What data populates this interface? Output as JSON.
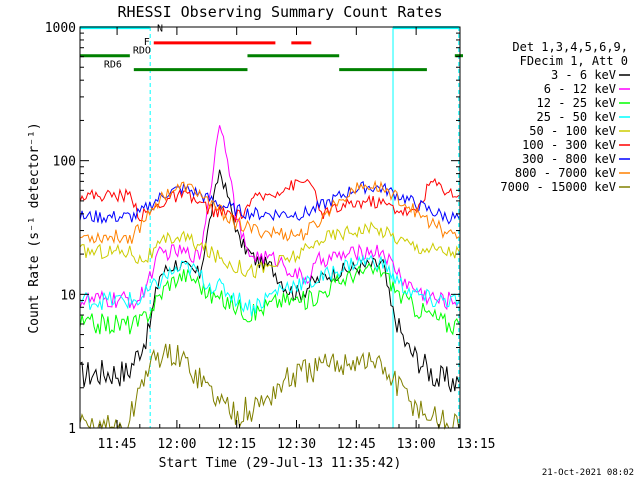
{
  "chart_data": {
    "type": "line",
    "title": "RHESSI Observing Summary Count Rates",
    "xlabel": "Start Time (29-Jul-13 11:35:42)",
    "ylabel": "Count Rate (s⁻¹ detector⁻¹)",
    "yscale": "log",
    "ylim": [
      1,
      1000
    ],
    "xlim_min": [
      0,
      95
    ],
    "x_ticks": [
      {
        "min": 9.3,
        "label": "11:45"
      },
      {
        "min": 24.3,
        "label": "12:00"
      },
      {
        "min": 39.3,
        "label": "12:15"
      },
      {
        "min": 54.3,
        "label": "12:30"
      },
      {
        "min": 69.3,
        "label": "12:45"
      },
      {
        "min": 84.3,
        "label": "13:00"
      },
      {
        "min": 99.3,
        "label": "13:15"
      }
    ],
    "y_ticks": [
      {
        "v": 1,
        "label": "1"
      },
      {
        "v": 10,
        "label": "10"
      },
      {
        "v": 100,
        "label": "100"
      },
      {
        "v": 1000,
        "label": "1000"
      }
    ],
    "legend_header": [
      "Det 1,3,4,5,6,9,",
      "FDecim 1, Att 0"
    ],
    "legend_position": "right",
    "series": [
      {
        "name": "3 - 6 keV",
        "color": "#000000",
        "values": [
          [
            0,
            2.5
          ],
          [
            6,
            2.6
          ],
          [
            12,
            2.6
          ],
          [
            17,
            5
          ],
          [
            20,
            14
          ],
          [
            24,
            17
          ],
          [
            28,
            15
          ],
          [
            30,
            14
          ],
          [
            34,
            60
          ],
          [
            35,
            85
          ],
          [
            37,
            55
          ],
          [
            40,
            25
          ],
          [
            44,
            18
          ],
          [
            48,
            16
          ],
          [
            52,
            11
          ],
          [
            55,
            10
          ],
          [
            58,
            12
          ],
          [
            62,
            14
          ],
          [
            66,
            15
          ],
          [
            70,
            16
          ],
          [
            76,
            17
          ],
          [
            78,
            8
          ],
          [
            82,
            4
          ],
          [
            86,
            3
          ],
          [
            90,
            2.3
          ],
          [
            95,
            2.2
          ]
        ]
      },
      {
        "name": "6 - 12 keV",
        "color": "#ff00ff",
        "values": [
          [
            0,
            9
          ],
          [
            15,
            9
          ],
          [
            18,
            15
          ],
          [
            20,
            20
          ],
          [
            24,
            21
          ],
          [
            28,
            20
          ],
          [
            30,
            19
          ],
          [
            33,
            70
          ],
          [
            35,
            200
          ],
          [
            37,
            110
          ],
          [
            39,
            40
          ],
          [
            42,
            20
          ],
          [
            46,
            19
          ],
          [
            50,
            18
          ],
          [
            54,
            14
          ],
          [
            57,
            13
          ],
          [
            60,
            18
          ],
          [
            64,
            19
          ],
          [
            68,
            20
          ],
          [
            72,
            21
          ],
          [
            76,
            21
          ],
          [
            78,
            17
          ],
          [
            82,
            12
          ],
          [
            86,
            10
          ],
          [
            90,
            9
          ],
          [
            95,
            9
          ]
        ]
      },
      {
        "name": "12 - 25 keV",
        "color": "#00ff00",
        "values": [
          [
            0,
            6
          ],
          [
            15,
            6
          ],
          [
            18,
            8
          ],
          [
            22,
            12
          ],
          [
            26,
            14
          ],
          [
            29,
            13
          ],
          [
            32,
            10
          ],
          [
            36,
            9
          ],
          [
            40,
            8
          ],
          [
            43,
            7
          ],
          [
            46,
            8
          ],
          [
            50,
            9
          ],
          [
            54,
            9
          ],
          [
            57,
            9
          ],
          [
            60,
            10
          ],
          [
            64,
            12
          ],
          [
            68,
            14
          ],
          [
            72,
            15
          ],
          [
            76,
            15
          ],
          [
            80,
            10
          ],
          [
            84,
            8
          ],
          [
            88,
            7
          ],
          [
            92,
            6
          ],
          [
            95,
            6
          ]
        ]
      },
      {
        "name": "25 - 50 keV",
        "color": "#00ffff",
        "values": [
          [
            0,
            9
          ],
          [
            15,
            9
          ],
          [
            18,
            11
          ],
          [
            22,
            14
          ],
          [
            26,
            16
          ],
          [
            29,
            15
          ],
          [
            32,
            12
          ],
          [
            36,
            11
          ],
          [
            40,
            9
          ],
          [
            43,
            8
          ],
          [
            46,
            9
          ],
          [
            50,
            11
          ],
          [
            54,
            12
          ],
          [
            57,
            12
          ],
          [
            60,
            13
          ],
          [
            64,
            15
          ],
          [
            68,
            17
          ],
          [
            72,
            18
          ],
          [
            76,
            17
          ],
          [
            80,
            12
          ],
          [
            84,
            10
          ],
          [
            88,
            9
          ],
          [
            92,
            9
          ],
          [
            95,
            9
          ]
        ]
      },
      {
        "name": "50 - 100 keV",
        "color": "#cccc00",
        "values": [
          [
            0,
            21
          ],
          [
            13,
            21
          ],
          [
            15,
            18
          ],
          [
            18,
            20
          ],
          [
            22,
            26
          ],
          [
            26,
            27
          ],
          [
            29,
            24
          ],
          [
            32,
            21
          ],
          [
            36,
            18
          ],
          [
            40,
            16
          ],
          [
            43,
            15
          ],
          [
            47,
            16
          ],
          [
            51,
            18
          ],
          [
            55,
            20
          ],
          [
            58,
            22
          ],
          [
            60,
            26
          ],
          [
            64,
            28
          ],
          [
            68,
            30
          ],
          [
            72,
            31
          ],
          [
            76,
            30
          ],
          [
            80,
            26
          ],
          [
            84,
            23
          ],
          [
            88,
            22
          ],
          [
            92,
            21
          ],
          [
            95,
            21
          ]
        ]
      },
      {
        "name": "100 - 300 keV",
        "color": "#ff0000",
        "values": [
          [
            0,
            55
          ],
          [
            13,
            55
          ],
          [
            15,
            38
          ],
          [
            18,
            42
          ],
          [
            22,
            52
          ],
          [
            26,
            55
          ],
          [
            29,
            50
          ],
          [
            32,
            44
          ],
          [
            36,
            40
          ],
          [
            40,
            38
          ],
          [
            43,
            50
          ],
          [
            47,
            55
          ],
          [
            51,
            62
          ],
          [
            55,
            68
          ],
          [
            58,
            72
          ],
          [
            60,
            40
          ],
          [
            64,
            43
          ],
          [
            68,
            47
          ],
          [
            72,
            50
          ],
          [
            76,
            48
          ],
          [
            80,
            43
          ],
          [
            84,
            40
          ],
          [
            88,
            70
          ],
          [
            92,
            60
          ],
          [
            95,
            55
          ]
        ]
      },
      {
        "name": "300 - 800 keV",
        "color": "#0000ff",
        "values": [
          [
            0,
            38
          ],
          [
            13,
            38
          ],
          [
            15,
            40
          ],
          [
            18,
            48
          ],
          [
            22,
            58
          ],
          [
            26,
            62
          ],
          [
            29,
            58
          ],
          [
            32,
            52
          ],
          [
            36,
            46
          ],
          [
            40,
            42
          ],
          [
            44,
            40
          ],
          [
            48,
            40
          ],
          [
            52,
            40
          ],
          [
            56,
            40
          ],
          [
            60,
            45
          ],
          [
            64,
            52
          ],
          [
            68,
            60
          ],
          [
            72,
            64
          ],
          [
            76,
            62
          ],
          [
            80,
            55
          ],
          [
            84,
            48
          ],
          [
            88,
            42
          ],
          [
            92,
            38
          ],
          [
            95,
            37
          ]
        ]
      },
      {
        "name": "800 - 7000 keV",
        "color": "#ff8000",
        "values": [
          [
            0,
            27
          ],
          [
            13,
            27
          ],
          [
            15,
            32
          ],
          [
            18,
            45
          ],
          [
            22,
            58
          ],
          [
            26,
            64
          ],
          [
            29,
            60
          ],
          [
            32,
            50
          ],
          [
            36,
            40
          ],
          [
            40,
            33
          ],
          [
            44,
            30
          ],
          [
            48,
            29
          ],
          [
            52,
            28
          ],
          [
            56,
            28
          ],
          [
            60,
            35
          ],
          [
            64,
            48
          ],
          [
            68,
            60
          ],
          [
            72,
            65
          ],
          [
            76,
            62
          ],
          [
            80,
            52
          ],
          [
            84,
            42
          ],
          [
            88,
            34
          ],
          [
            92,
            29
          ],
          [
            95,
            27
          ]
        ]
      },
      {
        "name": "7000 - 15000 keV",
        "color": "#808000",
        "values": [
          [
            0,
            1
          ],
          [
            12,
            1
          ],
          [
            14,
            1.6
          ],
          [
            16,
            2.5
          ],
          [
            18,
            3
          ],
          [
            20,
            3.5
          ],
          [
            24,
            3.5
          ],
          [
            28,
            2.8
          ],
          [
            32,
            2
          ],
          [
            36,
            1.5
          ],
          [
            40,
            1.3
          ],
          [
            44,
            1.4
          ],
          [
            48,
            1.8
          ],
          [
            52,
            2.3
          ],
          [
            56,
            2.6
          ],
          [
            60,
            2.8
          ],
          [
            64,
            3
          ],
          [
            68,
            3.2
          ],
          [
            72,
            3.2
          ],
          [
            76,
            2.8
          ],
          [
            80,
            2
          ],
          [
            84,
            1.5
          ],
          [
            88,
            1.2
          ],
          [
            92,
            1.1
          ],
          [
            95,
            1
          ]
        ]
      }
    ],
    "flags": [
      {
        "name": "N",
        "label": "N",
        "color": "#00ffff",
        "y": 990,
        "segments": [
          [
            0,
            17.5
          ],
          [
            78.5,
            95
          ]
        ]
      },
      {
        "name": "F",
        "label": "F",
        "color": "#ff0000",
        "y": 760,
        "segments": [
          [
            18.5,
            49
          ],
          [
            53,
            58
          ]
        ]
      },
      {
        "name": "RDO",
        "label": "RDO",
        "color": "#008000",
        "y": 610,
        "segments": [
          [
            0,
            12.5
          ],
          [
            42,
            65
          ],
          [
            94,
            99
          ]
        ]
      },
      {
        "name": "RD6",
        "label": "RD6",
        "color": "#008000",
        "y": 480,
        "segments": [
          [
            13.5,
            42
          ],
          [
            65,
            87
          ]
        ]
      }
    ],
    "vertical_markers": [
      {
        "min": 0,
        "color": "#00ffff",
        "style": "solid"
      },
      {
        "min": 17.6,
        "color": "#00ffff",
        "style": "dashed"
      },
      {
        "min": 78.5,
        "color": "#00ffff",
        "style": "solid"
      },
      {
        "min": 95,
        "color": "#00ffff",
        "style": "dashed"
      }
    ],
    "timestamp": "21-Oct-2021 08:02"
  }
}
